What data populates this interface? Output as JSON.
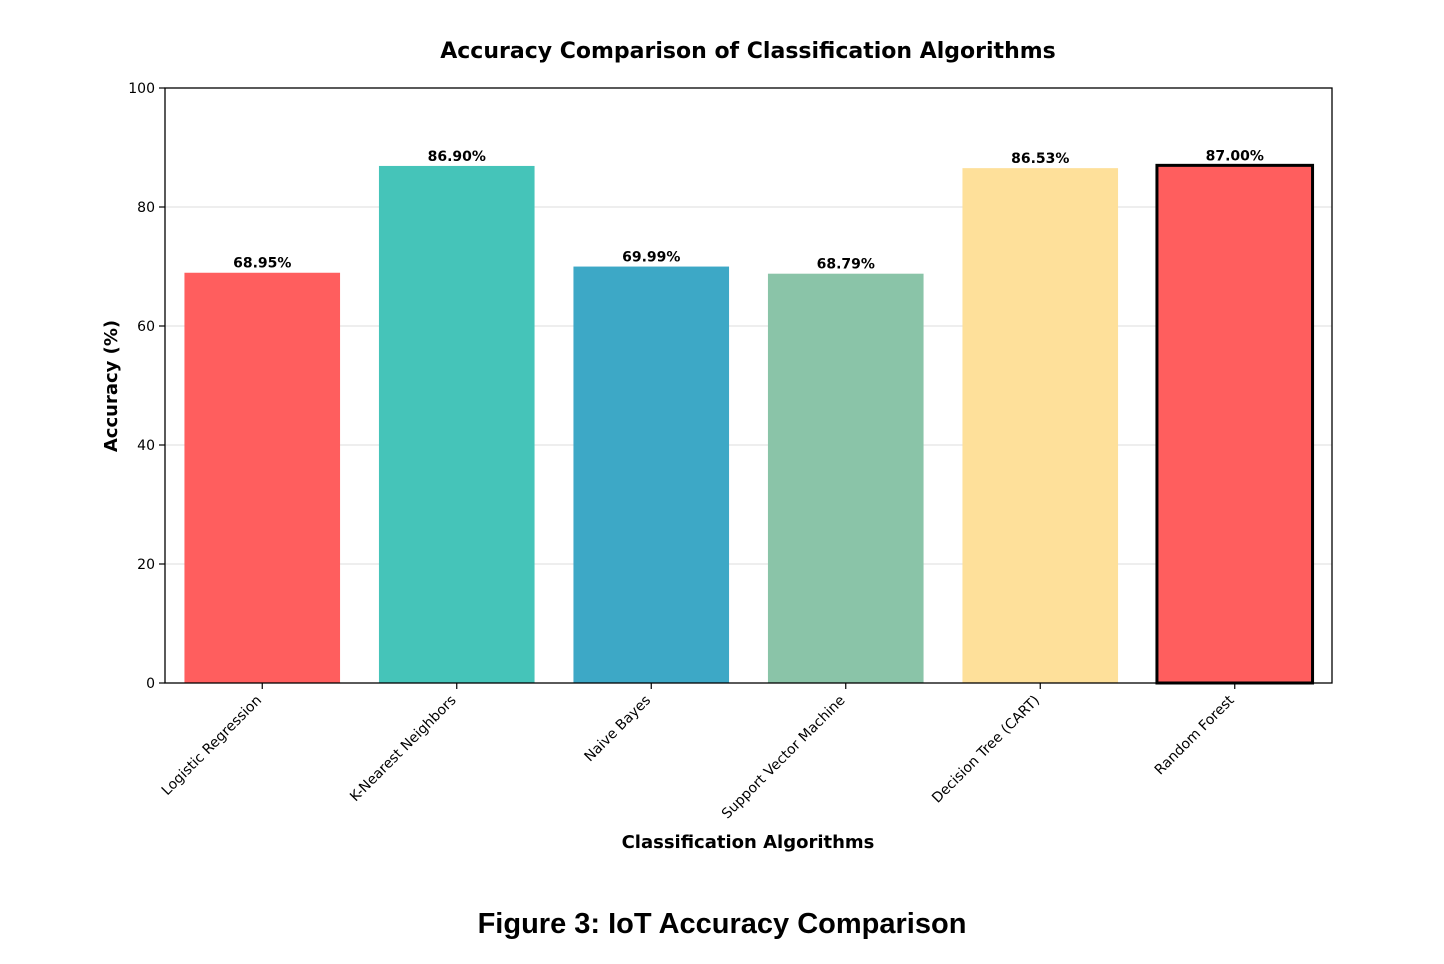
{
  "figure_caption": "Figure 3: IoT Accuracy Comparison",
  "chart_data": {
    "type": "bar",
    "title": "Accuracy Comparison of Classification Algorithms",
    "xlabel": "Classification Algorithms",
    "ylabel": "Accuracy (%)",
    "ylim": [
      0,
      100
    ],
    "yticks": [
      0,
      20,
      40,
      60,
      80,
      100
    ],
    "grid": "horizontal",
    "categories": [
      "Logistic Regression",
      "K-Nearest Neighbors",
      "Naive Bayes",
      "Support Vector Machine",
      "Decision Tree (CART)",
      "Random Forest"
    ],
    "values": [
      68.95,
      86.9,
      69.99,
      68.79,
      86.53,
      87.0
    ],
    "value_labels": [
      "68.95%",
      "86.90%",
      "69.99%",
      "68.79%",
      "86.53%",
      "87.00%"
    ],
    "colors": [
      "#FF5E5E",
      "#45C4B9",
      "#3DA8C6",
      "#8AC4A8",
      "#FEE09A",
      "#FF5E5E"
    ],
    "highlighted": "Random Forest"
  }
}
